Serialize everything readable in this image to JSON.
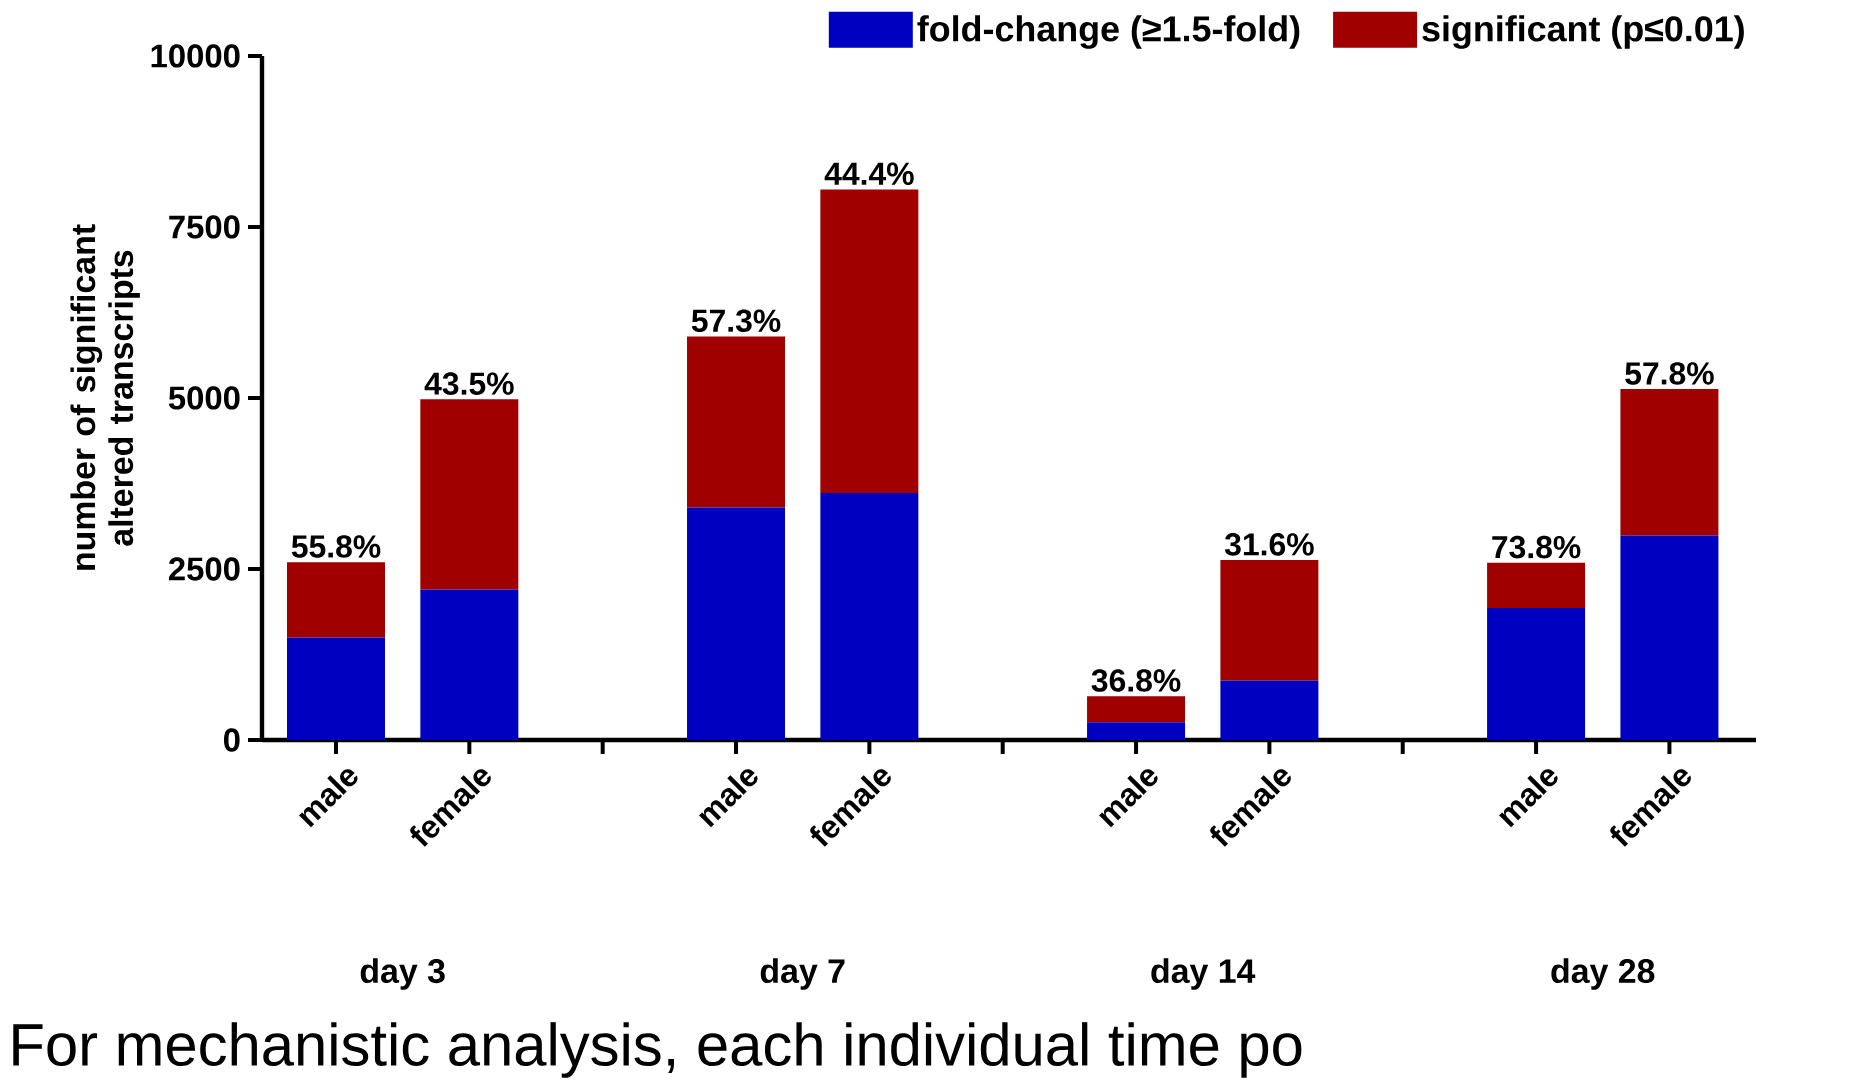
{
  "chart_data": {
    "type": "bar",
    "stacked": true,
    "legend": "top",
    "ylabel": "number of significant altered transcripts",
    "categories": [
      "male",
      "female",
      null,
      "male",
      "female",
      null,
      "male",
      "female",
      null,
      "male",
      "female"
    ],
    "series": [
      {
        "name": "fold-change (≥1.5-fold)",
        "color": "#0000c0",
        "values": [
          1500,
          2200,
          null,
          3400,
          3610,
          null,
          260,
          870,
          null,
          1930,
          2990
        ]
      },
      {
        "name": "significant (p≤0.01)",
        "color": "#a00000",
        "values": [
          1100,
          2780,
          null,
          2500,
          4440,
          null,
          380,
          1760,
          null,
          660,
          2140
        ]
      }
    ],
    "ylim": [
      0,
      10000
    ],
    "yticks": [
      0,
      2500,
      5000,
      7500,
      10000
    ],
    "annotations": [
      "55.8%",
      "43.5%",
      "57.3%",
      "44.4%",
      "36.8%",
      "31.6%",
      "73.8%",
      "57.8%",
      "day 3",
      "day 7",
      "day 14",
      "day 28",
      "For mechanistic analysis, each individual time po"
    ]
  }
}
